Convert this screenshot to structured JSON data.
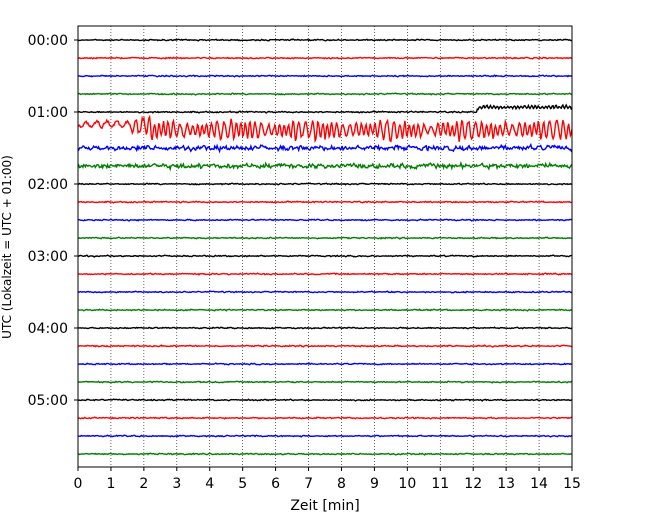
{
  "chart_data": {
    "type": "line",
    "title": "",
    "xlabel": "Zeit  [min]",
    "ylabel": "UTC (Lokalzeit = UTC + 01:00)",
    "xlim": [
      0,
      15
    ],
    "x_ticks": [
      "0",
      "1",
      "2",
      "3",
      "4",
      "5",
      "6",
      "7",
      "8",
      "9",
      "10",
      "11",
      "12",
      "13",
      "14",
      "15"
    ],
    "y_ticks": [
      "00:00",
      "01:00",
      "02:00",
      "03:00",
      "04:00",
      "05:00"
    ],
    "y_range_hours": [
      0,
      6
    ],
    "rows_per_hour": 4,
    "row_minutes": 15,
    "grid_x": "dotted vertical at each minute",
    "legend": "none",
    "series_colors": [
      "#000000",
      "#ff0000",
      "#0000ff",
      "#008000"
    ],
    "traces": [
      {
        "start": "00:00",
        "color": "#000000",
        "activity": "quiet"
      },
      {
        "start": "00:15",
        "color": "#ff0000",
        "activity": "quiet"
      },
      {
        "start": "00:30",
        "color": "#0000ff",
        "activity": "quiet"
      },
      {
        "start": "00:45",
        "color": "#008000",
        "activity": "quiet"
      },
      {
        "start": "01:00",
        "color": "#000000",
        "activity": "event after 12 min"
      },
      {
        "start": "01:15",
        "color": "#ff0000",
        "activity": "large signal"
      },
      {
        "start": "01:30",
        "color": "#0000ff",
        "activity": "moderate signal"
      },
      {
        "start": "01:45",
        "color": "#008000",
        "activity": "moderate signal"
      },
      {
        "start": "02:00",
        "color": "#000000",
        "activity": "quiet"
      },
      {
        "start": "02:15",
        "color": "#ff0000",
        "activity": "quiet"
      },
      {
        "start": "02:30",
        "color": "#0000ff",
        "activity": "quiet"
      },
      {
        "start": "02:45",
        "color": "#008000",
        "activity": "quiet"
      },
      {
        "start": "03:00",
        "color": "#000000",
        "activity": "quiet"
      },
      {
        "start": "03:15",
        "color": "#ff0000",
        "activity": "quiet"
      },
      {
        "start": "03:30",
        "color": "#0000ff",
        "activity": "quiet"
      },
      {
        "start": "03:45",
        "color": "#008000",
        "activity": "quiet"
      },
      {
        "start": "04:00",
        "color": "#000000",
        "activity": "quiet"
      },
      {
        "start": "04:15",
        "color": "#ff0000",
        "activity": "quiet"
      },
      {
        "start": "04:30",
        "color": "#0000ff",
        "activity": "quiet"
      },
      {
        "start": "04:45",
        "color": "#008000",
        "activity": "quiet"
      },
      {
        "start": "05:00",
        "color": "#000000",
        "activity": "quiet"
      },
      {
        "start": "05:15",
        "color": "#ff0000",
        "activity": "quiet"
      },
      {
        "start": "05:30",
        "color": "#0000ff",
        "activity": "quiet"
      },
      {
        "start": "05:45",
        "color": "#008000",
        "activity": "quiet"
      }
    ]
  }
}
